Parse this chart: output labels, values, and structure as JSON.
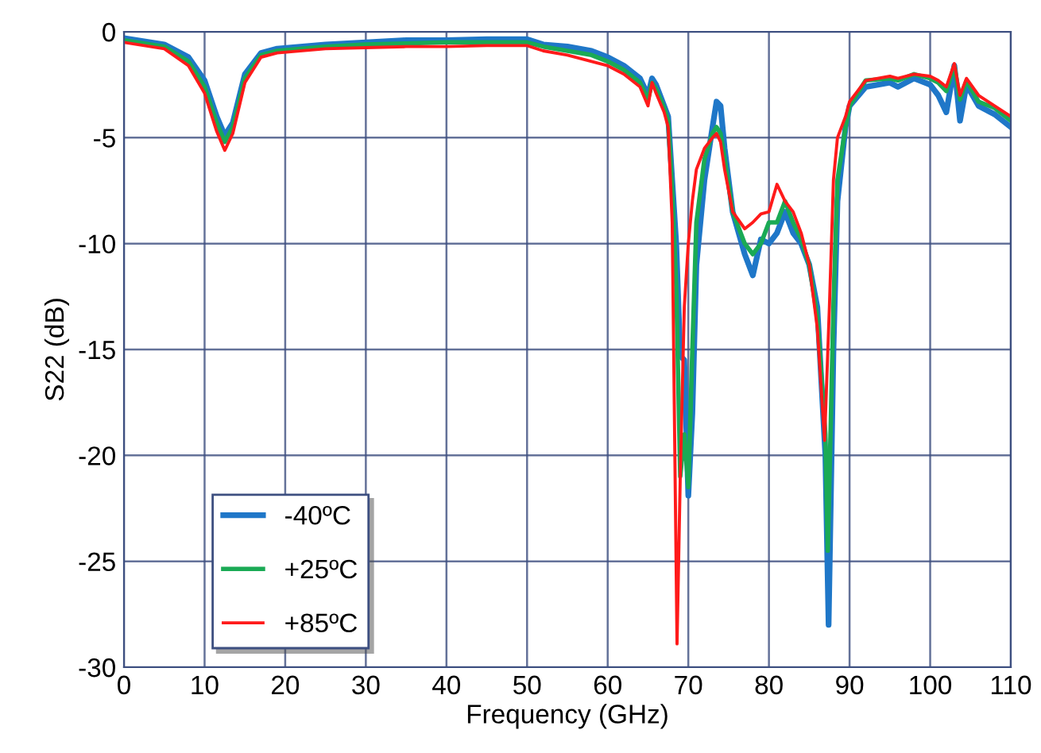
{
  "chart_data": {
    "type": "line",
    "xlabel": "Frequency (GHz)",
    "ylabel": "S22 (dB)",
    "xlim": [
      0,
      110
    ],
    "xticks": [
      0,
      10,
      20,
      30,
      40,
      50,
      60,
      70,
      80,
      90,
      100,
      110
    ],
    "ylim": [
      -30,
      0
    ],
    "yticks": [
      -30,
      -25,
      -20,
      -15,
      -10,
      -5,
      0
    ],
    "grid": true,
    "legend": "bottom left",
    "line_style": "solid",
    "series": [
      {
        "name": "-40ºC",
        "color": "#1f77c8",
        "x": [
          0,
          5,
          8,
          10,
          11.5,
          12.5,
          13.5,
          15,
          17,
          19,
          25,
          30,
          35,
          40,
          45,
          50,
          52,
          55,
          58,
          60,
          62,
          64,
          65,
          65.5,
          66,
          67,
          67.5,
          68,
          68.5,
          69,
          69.5,
          70,
          70.5,
          71,
          72,
          73,
          73.5,
          74,
          74.5,
          75.5,
          77,
          78,
          79,
          80,
          81,
          82,
          83,
          84,
          85,
          86,
          87,
          87.4,
          88,
          88.5,
          89.5,
          90,
          92,
          95,
          96,
          98,
          100,
          101,
          102,
          103,
          103.7,
          104.5,
          106,
          108,
          110
        ],
        "values": [
          -0.3,
          -0.6,
          -1.2,
          -2.3,
          -4,
          -4.9,
          -4.3,
          -2,
          -1,
          -0.8,
          -0.6,
          -0.5,
          -0.4,
          -0.4,
          -0.35,
          -0.35,
          -0.6,
          -0.7,
          -0.9,
          -1.2,
          -1.6,
          -2.2,
          -3,
          -2.2,
          -2.5,
          -3.5,
          -4,
          -7,
          -10,
          -15.3,
          -15.5,
          -21.9,
          -18,
          -11,
          -7,
          -4.5,
          -3.3,
          -3.5,
          -5.5,
          -8.5,
          -10.5,
          -11.5,
          -9.8,
          -10,
          -9.5,
          -8.5,
          -9.5,
          -10,
          -11,
          -13,
          -20,
          -28,
          -15,
          -8,
          -4.5,
          -3.5,
          -2.6,
          -2.4,
          -2.6,
          -2.2,
          -2.5,
          -3,
          -3.8,
          -1.6,
          -4.2,
          -2.5,
          -3.5,
          -3.9,
          -4.5
        ]
      },
      {
        "name": "+25ºC",
        "color": "#1aaa55",
        "x": [
          0,
          5,
          8,
          10,
          11.5,
          12.5,
          13.5,
          15,
          17,
          19,
          25,
          30,
          35,
          40,
          45,
          50,
          52,
          55,
          58,
          60,
          62,
          64,
          65,
          65.5,
          66,
          67,
          67.5,
          68,
          68.5,
          69,
          69.5,
          70,
          70.5,
          71,
          72,
          73,
          73.5,
          74,
          74.5,
          75.5,
          77,
          78,
          79,
          80,
          81,
          82,
          83,
          84,
          85,
          86,
          87,
          87.3,
          88,
          88.5,
          89.5,
          90,
          92,
          95,
          96,
          98,
          100,
          101,
          102,
          103,
          103.7,
          104.5,
          106,
          108,
          110
        ],
        "values": [
          -0.4,
          -0.7,
          -1.4,
          -2.6,
          -4.3,
          -5.2,
          -4.5,
          -2.2,
          -1.1,
          -0.9,
          -0.7,
          -0.6,
          -0.55,
          -0.5,
          -0.5,
          -0.5,
          -0.7,
          -0.9,
          -1.1,
          -1.4,
          -1.8,
          -2.4,
          -3.2,
          -2.4,
          -2.7,
          -3.6,
          -4.2,
          -7.5,
          -12,
          -21,
          -19,
          -21.5,
          -15,
          -9,
          -6,
          -4.8,
          -4.5,
          -4.8,
          -6,
          -8.5,
          -10,
          -10.5,
          -10,
          -9,
          -9,
          -8,
          -9,
          -9.8,
          -11,
          -13.5,
          -19,
          -24.5,
          -13,
          -7,
          -4.5,
          -3.5,
          -2.3,
          -2.2,
          -2.3,
          -2,
          -2.2,
          -2.4,
          -2.8,
          -1.6,
          -3.2,
          -2.3,
          -3.3,
          -3.6,
          -4.2
        ]
      },
      {
        "name": "+85ºC",
        "color": "#ff1a1a",
        "x": [
          0,
          5,
          8,
          10,
          11.5,
          12.5,
          13.5,
          15,
          17,
          19,
          25,
          30,
          35,
          40,
          45,
          50,
          52,
          55,
          58,
          60,
          62,
          64,
          65,
          65.5,
          66,
          67,
          67.5,
          68,
          68.6,
          69,
          69.5,
          70,
          70.5,
          71,
          72,
          73,
          73.5,
          74,
          74.5,
          75.5,
          77,
          78,
          79,
          80,
          81,
          82,
          83,
          84,
          85,
          86,
          86.9,
          87.5,
          88,
          88.5,
          89.5,
          90,
          92,
          95,
          96,
          98,
          100,
          101,
          102,
          103,
          103.7,
          104.5,
          106,
          108,
          110
        ],
        "values": [
          -0.5,
          -0.8,
          -1.6,
          -2.9,
          -4.7,
          -5.6,
          -4.8,
          -2.4,
          -1.2,
          -1,
          -0.8,
          -0.75,
          -0.7,
          -0.7,
          -0.65,
          -0.65,
          -0.9,
          -1.1,
          -1.4,
          -1.6,
          -2,
          -2.6,
          -3.5,
          -2.4,
          -2.9,
          -3.8,
          -4.5,
          -9,
          -28.9,
          -21,
          -13,
          -10,
          -8,
          -6.5,
          -5.5,
          -5,
          -4.8,
          -5.2,
          -6.5,
          -8.5,
          -9.3,
          -9,
          -8.6,
          -8.5,
          -7.2,
          -8,
          -8.5,
          -9.5,
          -11,
          -14,
          -19.3,
          -13,
          -7,
          -5,
          -4,
          -3.3,
          -2.3,
          -2.1,
          -2.2,
          -2,
          -2.1,
          -2.3,
          -2.6,
          -1.5,
          -3,
          -2.2,
          -3,
          -3.5,
          -4
        ]
      }
    ]
  }
}
